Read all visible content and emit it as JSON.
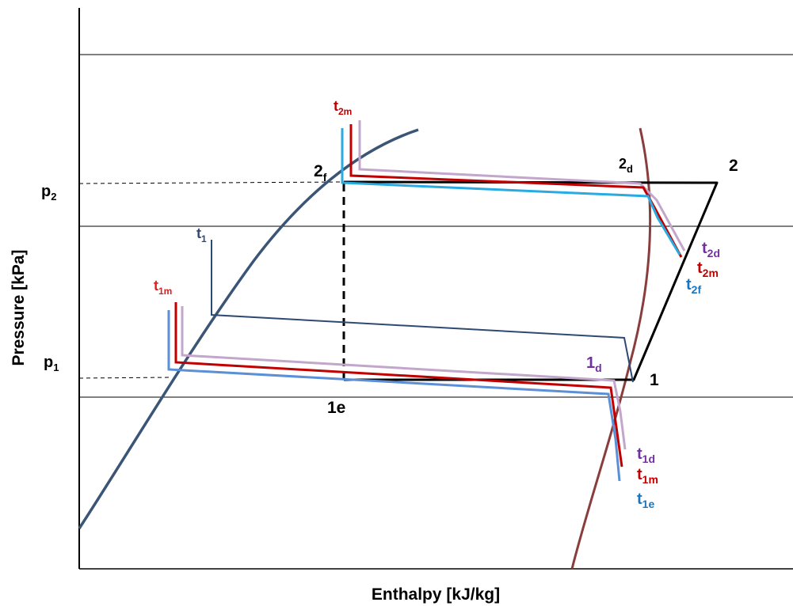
{
  "axes": {
    "x_title": "Enthalpy [kJ/kg]",
    "y_title": "Pressure [kPa]"
  },
  "pressure_labels": {
    "p2": {
      "base": "p",
      "sub": "2"
    },
    "p1": {
      "base": "p",
      "sub": "1"
    }
  },
  "state_points": {
    "pt_2": "2",
    "pt_1": "1",
    "pt_1e": "1e",
    "pt_2f": {
      "base": "2",
      "sub": "f"
    },
    "pt_2d": {
      "base": "2",
      "sub": "d"
    },
    "pt_1d": {
      "base": "1",
      "sub": "d"
    }
  },
  "temperature_labels": {
    "t2m_top": {
      "base": "t",
      "sub": "2m"
    },
    "t1": {
      "base": "t",
      "sub": "1"
    },
    "t1m": {
      "base": "t",
      "sub": "1m"
    },
    "t2d": {
      "base": "t",
      "sub": "2d"
    },
    "t2m_right": {
      "base": "t",
      "sub": "2m"
    },
    "t2f": {
      "base": "t",
      "sub": "2f"
    },
    "t1d": {
      "base": "t",
      "sub": "1d"
    },
    "t1m_bottom": {
      "base": "t",
      "sub": "1m"
    },
    "t1e": {
      "base": "t",
      "sub": "1e"
    }
  },
  "colors": {
    "saturation_liquid": "#3a5575",
    "saturation_vapor": "#8a3d3d",
    "ideal_cycle": "#000000",
    "t1_cycle": "#2f4a72",
    "mixture_red": "#c00000",
    "light_purple": "#c3a6cc",
    "light_blue": "#29abe2",
    "medium_blue": "#5b8fd6",
    "label_red": "#e02020",
    "label_purple": "#7030a0",
    "label_blue": "#1a75bc"
  }
}
